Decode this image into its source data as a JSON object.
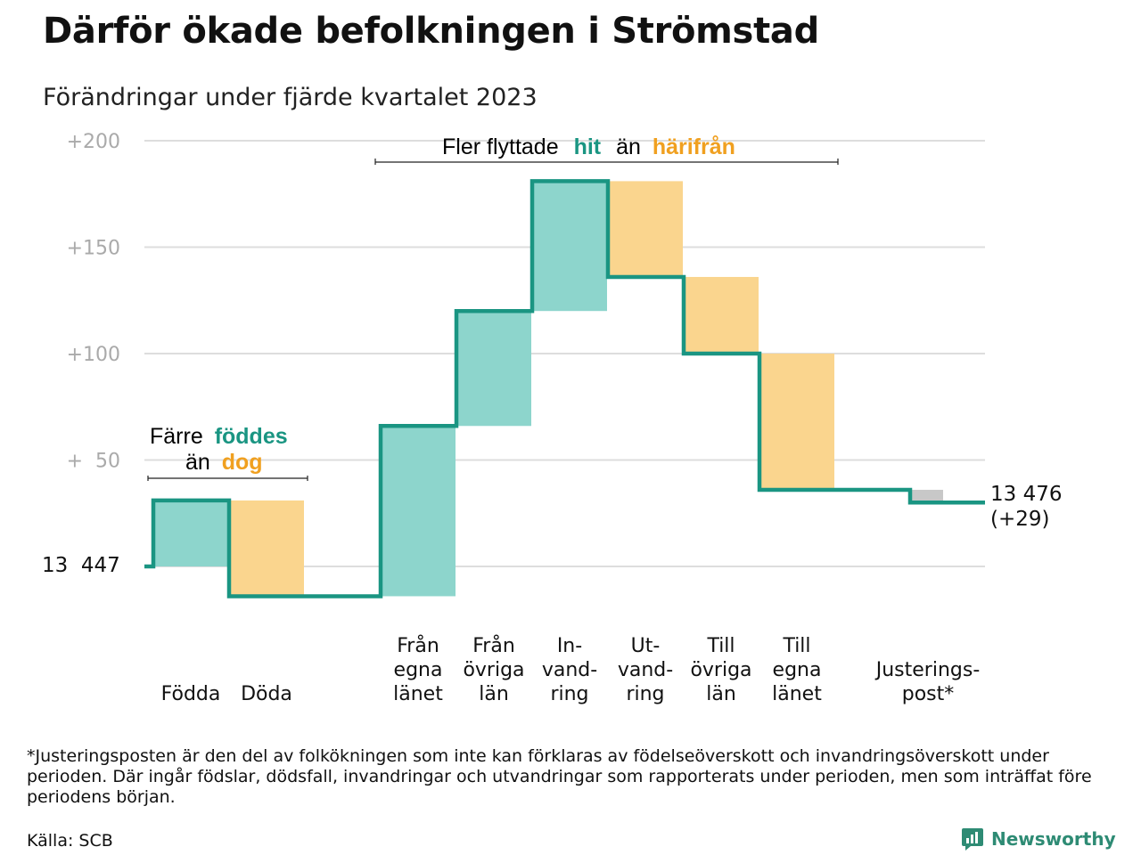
{
  "title": "Därför ökade befolkningen i Strömstad",
  "subtitle": "Förändringar under fjärde kvartalet 2023",
  "colors": {
    "in": "#8dd5cc",
    "out": "#fad58e",
    "adjust": "#c8c8c8",
    "line": "#1a9582",
    "teal_text": "#1a9582",
    "orange_text": "#f0a020",
    "grid": "#dddddd",
    "tick": "#aaaaaa"
  },
  "annotations": {
    "births_line1_a": "Färre",
    "births_line1_b": "föddes",
    "births_line2_a": "än",
    "births_line2_b": "dog",
    "moves_a": "Fler flyttade",
    "moves_b": "hit",
    "moves_c": "än",
    "moves_d": "härifrån"
  },
  "start_label": "13  447",
  "end_label": {
    "line1": "13 476",
    "line2": "(+29)"
  },
  "chart_data": {
    "type": "waterfall",
    "title": "Därför ökade befolkningen i Strömstad",
    "subtitle": "Förändringar under fjärde kvartalet 2023",
    "start_value": 13447,
    "end_value": 13476,
    "net_change": 29,
    "y_ticks": [
      {
        "value": 200,
        "label": "+200"
      },
      {
        "value": 150,
        "label": "+150"
      },
      {
        "value": 100,
        "label": "+100"
      },
      {
        "value": 50,
        "label": "+  50"
      },
      {
        "value": 0,
        "label": ""
      }
    ],
    "ylim": [
      -20,
      200
    ],
    "grid": true,
    "steps": [
      {
        "label": [
          "Födda"
        ],
        "change": 31,
        "kind": "in"
      },
      {
        "label": [
          "Döda"
        ],
        "change": -45,
        "kind": "out"
      },
      {
        "label": [
          "Från",
          "egna",
          "länet"
        ],
        "change": 80,
        "kind": "in"
      },
      {
        "label": [
          "Från",
          "övriga",
          "län"
        ],
        "change": 54,
        "kind": "in"
      },
      {
        "label": [
          "In-",
          "vand-",
          "ring"
        ],
        "change": 61,
        "kind": "in"
      },
      {
        "label": [
          "Ut-",
          "vand-",
          "ring"
        ],
        "change": -45,
        "kind": "out"
      },
      {
        "label": [
          "Till",
          "övriga",
          "län"
        ],
        "change": -36,
        "kind": "out"
      },
      {
        "label": [
          "Till",
          "egna",
          "länet"
        ],
        "change": -64,
        "kind": "out"
      },
      {
        "label": [
          "Justerings-",
          "post*"
        ],
        "change": -6,
        "kind": "adjust"
      }
    ]
  },
  "footnote": "*Justeringsposten är den del av folkökningen som inte kan förklaras av födelseöverskott och invandringsöverskott under perioden. Där ingår födslar, dödsfall, invandringar och utvandringar som rapporterats under perioden, men som inträffat före periodens början.",
  "source": "Källa: SCB",
  "brand": "Newsworthy"
}
